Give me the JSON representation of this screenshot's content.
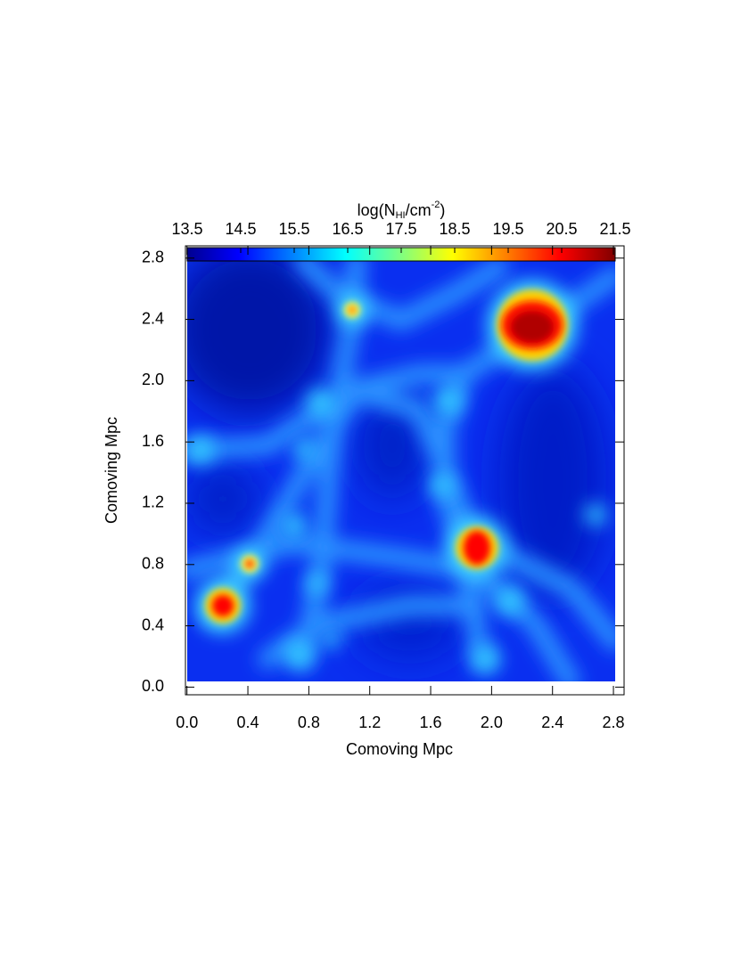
{
  "chart_data": {
    "type": "image",
    "xlabel": "Comoving Mpc",
    "ylabel": "Comoving Mpc",
    "xlim": [
      -0.01,
      2.87
    ],
    "ylim": [
      -0.05,
      2.88
    ],
    "xticks": [
      {
        "value": 0,
        "label": "0.0"
      },
      0.4,
      0.8,
      1.2,
      1.6,
      {
        "value": 2,
        "label": "2.0"
      },
      2.4,
      2.8
    ],
    "yticks": [
      {
        "value": 0,
        "label": "0.0"
      },
      0.4,
      0.8,
      1.2,
      1.6,
      {
        "value": 2,
        "label": "2.0"
      },
      2.4,
      2.8
    ],
    "colorbar": {
      "label_prefix": "log(N",
      "label_sub": "HI",
      "label_mid": "/cm",
      "label_sup": "-2",
      "label_end": ")",
      "clim": [
        13.5,
        21.5
      ],
      "ticks": [
        13.5,
        14.5,
        15.5,
        16.5,
        17.5,
        18.5,
        19.5,
        20.5,
        21.5
      ]
    }
  }
}
